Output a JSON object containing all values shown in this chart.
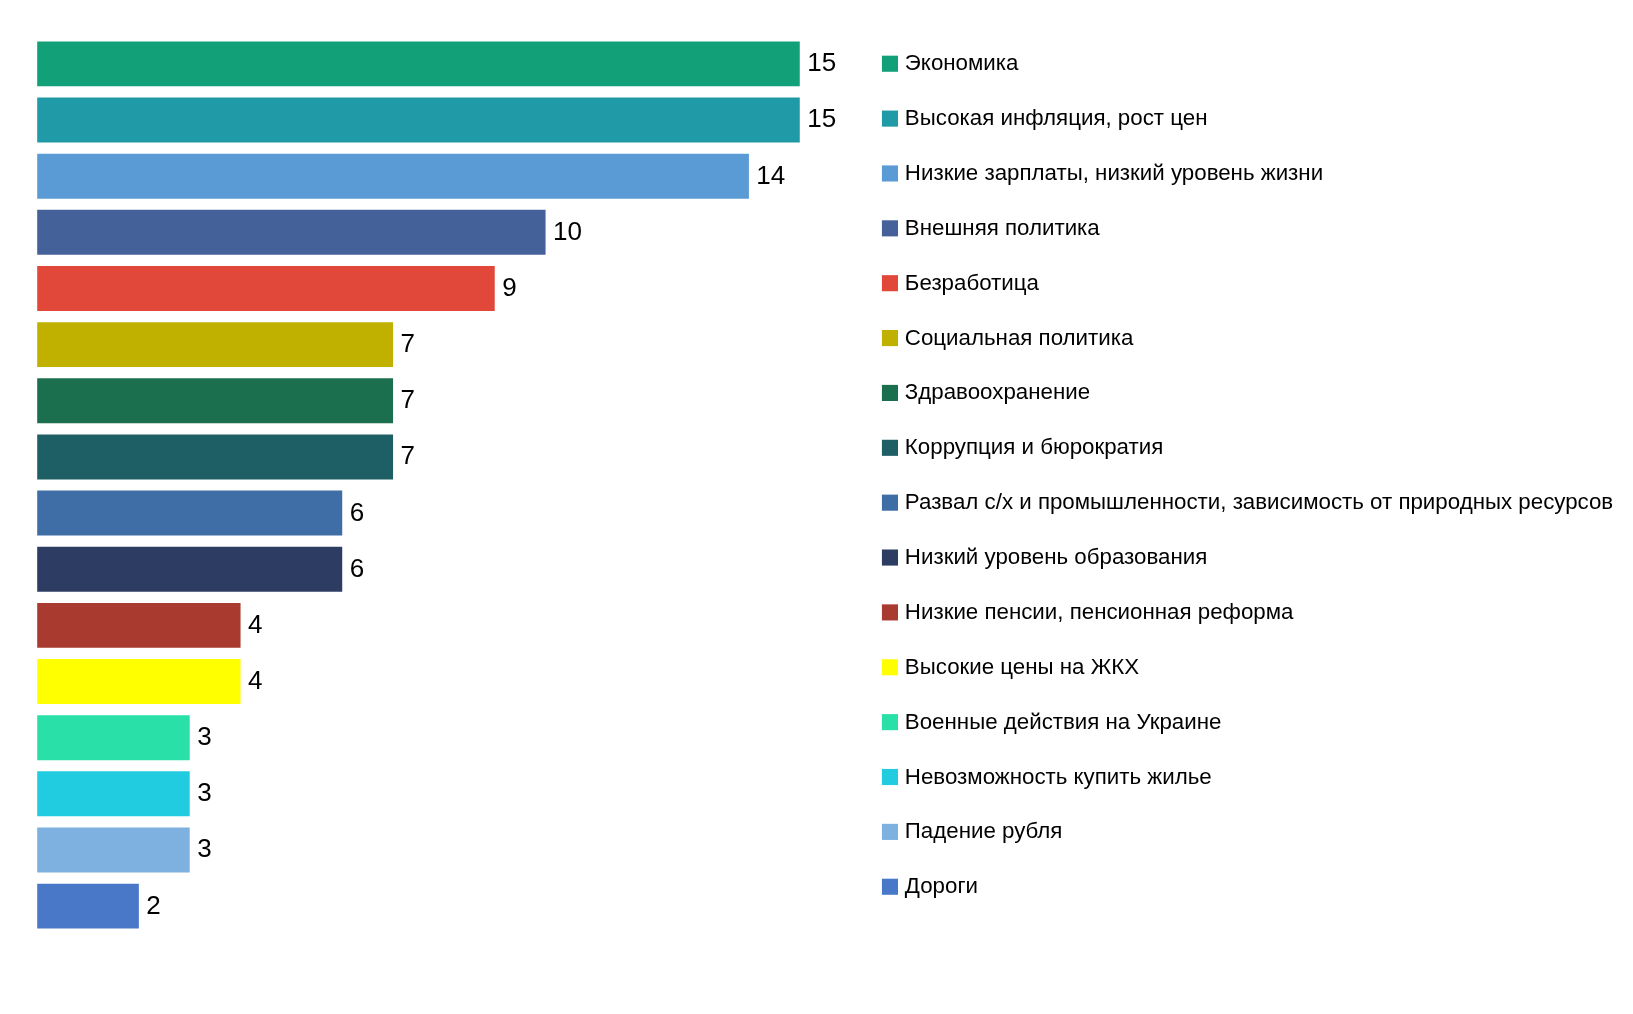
{
  "chart_data": {
    "type": "bar",
    "orientation": "horizontal",
    "categories": [
      null,
      null,
      null,
      null,
      null,
      null,
      null,
      null,
      null,
      null,
      null,
      null,
      null,
      null,
      null,
      null
    ],
    "series": [
      {
        "name": "Экономика",
        "color": "#12a078",
        "values": [
          15,
          null,
          null,
          null,
          null,
          null,
          null,
          null,
          null,
          null,
          null,
          null,
          null,
          null,
          null,
          null
        ]
      },
      {
        "name": "Высокая инфляция, рост цен",
        "color": "#1f9aa6",
        "values": [
          null,
          15,
          null,
          null,
          null,
          null,
          null,
          null,
          null,
          null,
          null,
          null,
          null,
          null,
          null,
          null
        ]
      },
      {
        "name": "Низкие зарплаты, низкий уровень жизни",
        "color": "#5b9bd5",
        "values": [
          null,
          null,
          14,
          null,
          null,
          null,
          null,
          null,
          null,
          null,
          null,
          null,
          null,
          null,
          null,
          null
        ]
      },
      {
        "name": "Внешняя политика",
        "color": "#44619a",
        "values": [
          null,
          null,
          null,
          10,
          null,
          null,
          null,
          null,
          null,
          null,
          null,
          null,
          null,
          null,
          null,
          null
        ]
      },
      {
        "name": "Безработица",
        "color": "#e2483a",
        "values": [
          null,
          null,
          null,
          null,
          9,
          null,
          null,
          null,
          null,
          null,
          null,
          null,
          null,
          null,
          null,
          null
        ]
      },
      {
        "name": "Социальная политика",
        "color": "#c0b000",
        "values": [
          null,
          null,
          null,
          null,
          null,
          7,
          null,
          null,
          null,
          null,
          null,
          null,
          null,
          null,
          null,
          null
        ]
      },
      {
        "name": "Здравоохранение",
        "color": "#1b6e4e",
        "values": [
          null,
          null,
          null,
          null,
          null,
          null,
          7,
          null,
          null,
          null,
          null,
          null,
          null,
          null,
          null,
          null
        ]
      },
      {
        "name": "Коррупция и бюрократия",
        "color": "#1e5f66",
        "values": [
          null,
          null,
          null,
          null,
          null,
          null,
          null,
          7,
          null,
          null,
          null,
          null,
          null,
          null,
          null,
          null
        ]
      },
      {
        "name": "Развал с/х и промышленности, зависимость от природных ресурсов",
        "color": "#3f6ea6",
        "values": [
          null,
          null,
          null,
          null,
          null,
          null,
          null,
          null,
          6,
          null,
          null,
          null,
          null,
          null,
          null,
          null
        ]
      },
      {
        "name": "Низкий уровень образования",
        "color": "#2c3c62",
        "values": [
          null,
          null,
          null,
          null,
          null,
          null,
          null,
          null,
          null,
          6,
          null,
          null,
          null,
          null,
          null,
          null
        ]
      },
      {
        "name": "Низкие пенсии, пенсионная реформа",
        "color": "#a83a30",
        "values": [
          null,
          null,
          null,
          null,
          null,
          null,
          null,
          null,
          null,
          null,
          4,
          null,
          null,
          null,
          null,
          null
        ]
      },
      {
        "name": "Высокие цены на ЖКХ",
        "color": "#ffff00",
        "values": [
          null,
          null,
          null,
          null,
          null,
          null,
          null,
          null,
          null,
          null,
          null,
          4,
          null,
          null,
          null,
          null
        ]
      },
      {
        "name": "Военные действия на Украине",
        "color": "#28e0a8",
        "values": [
          null,
          null,
          null,
          null,
          null,
          null,
          null,
          null,
          null,
          null,
          null,
          null,
          3,
          null,
          null,
          null
        ]
      },
      {
        "name": "Невозможность купить жилье",
        "color": "#22cce0",
        "values": [
          null,
          null,
          null,
          null,
          null,
          null,
          null,
          null,
          null,
          null,
          null,
          null,
          null,
          3,
          null,
          null
        ]
      },
      {
        "name": "Падение рубля",
        "color": "#7eb0e0",
        "values": [
          null,
          null,
          null,
          null,
          null,
          null,
          null,
          null,
          null,
          null,
          null,
          null,
          null,
          null,
          3,
          null
        ]
      },
      {
        "name": "Дороги",
        "color": "#4a78c8",
        "values": [
          null,
          null,
          null,
          null,
          null,
          null,
          null,
          null,
          null,
          null,
          null,
          null,
          null,
          null,
          null,
          2
        ]
      }
    ],
    "stacked": true,
    "data_labels": true,
    "legend": "right"
  }
}
